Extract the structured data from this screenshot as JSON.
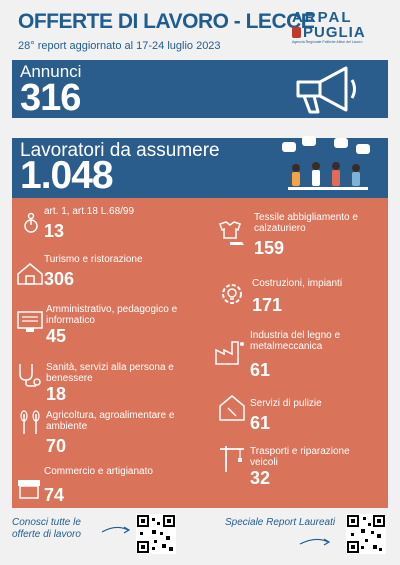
{
  "header": {
    "title": "OFFERTE DI LAVORO - LECCE",
    "subtitle": "28° report aggiornato al 17-24 luglio 2023"
  },
  "logo": {
    "line1": "ARPAL",
    "line2": "PUGLIA",
    "tagline": "Agenzia Regionale Politiche Attive del Lavoro"
  },
  "annunci": {
    "label": "Annunci",
    "value": "316",
    "icon": "megaphone-icon"
  },
  "lavoratori": {
    "label": "Lavoratori da assumere",
    "value": "1.048",
    "icon": "people-meeting-illustration"
  },
  "categories": [
    {
      "label": "art. 1, art.18 L.68/99",
      "value": "13",
      "icon": "disability-icon"
    },
    {
      "label": "Turismo e ristorazione",
      "value": "306",
      "icon": "hotel-icon"
    },
    {
      "label": "Amministrativo, pedagogico e informatico",
      "value": "45",
      "icon": "computer-icon"
    },
    {
      "label": "Sanità, servizi alla persona e benessere",
      "value": "18",
      "icon": "stethoscope-icon"
    },
    {
      "label": "Agricoltura,  agroalimentare e ambiente",
      "value": "70",
      "icon": "wheat-icon"
    },
    {
      "label": "Commercio e artigianato",
      "value": "74",
      "icon": "shop-icon"
    },
    {
      "label": "Tessile abbigliamento e calzaturiero",
      "value": "159",
      "icon": "tshirt-shoe-icon"
    },
    {
      "label": "Costruzioni, impianti",
      "value": "171",
      "icon": "gear-bulb-icon"
    },
    {
      "label": "Industria del legno e metalmeccanica",
      "value": "61",
      "icon": "factory-icon"
    },
    {
      "label": "Servizi di pulizie",
      "value": "61",
      "icon": "cleaning-house-icon"
    },
    {
      "label": "Trasporti e riparazione veicoli",
      "value": "32",
      "icon": "crane-icon"
    }
  ],
  "footer": {
    "left_line1": "Conosci  tutte le",
    "left_line2": "offerte di lavoro",
    "right": "Speciale Report  Laureati"
  },
  "colors": {
    "brand_blue": "#2a5d8c",
    "accent_orange": "#d9745a"
  }
}
